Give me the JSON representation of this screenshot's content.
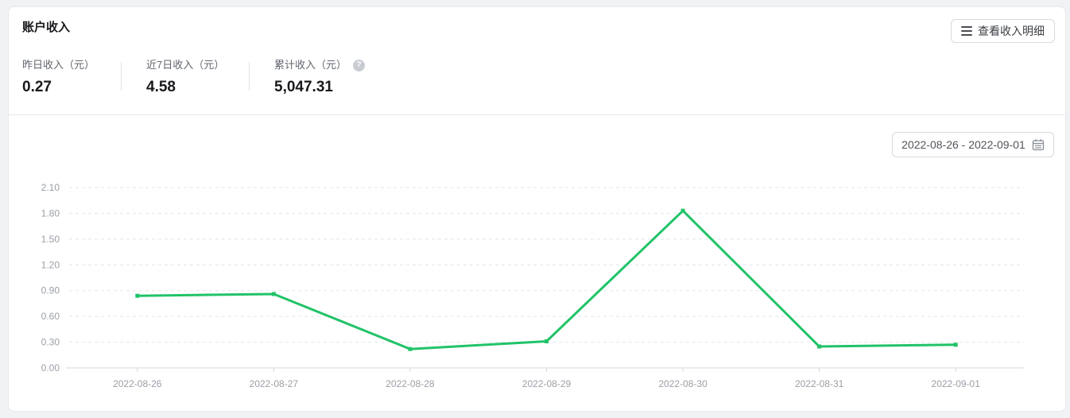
{
  "header": {
    "title": "账户收入",
    "detail_button": "查看收入明细"
  },
  "stats": [
    {
      "label": "昨日收入（元）",
      "value": "0.27"
    },
    {
      "label": "近7日收入（元）",
      "value": "4.58"
    },
    {
      "label": "累计收入（元）",
      "value": "5,047.31",
      "help_icon": "question-mark"
    }
  ],
  "date_range": {
    "value": "2022-08-26 - 2022-09-01",
    "icon": "calendar-icon"
  },
  "chart_data": {
    "type": "line",
    "categories": [
      "2022-08-26",
      "2022-08-27",
      "2022-08-28",
      "2022-08-29",
      "2022-08-30",
      "2022-08-31",
      "2022-09-01"
    ],
    "values": [
      0.84,
      0.86,
      0.22,
      0.31,
      1.83,
      0.25,
      0.27
    ],
    "title": "",
    "xlabel": "",
    "ylabel": "",
    "ylim": [
      0,
      2.1
    ],
    "ytick_step": 0.3,
    "ytick_labels": [
      "0.00",
      "0.30",
      "0.60",
      "0.90",
      "1.20",
      "1.50",
      "1.80",
      "2.10"
    ],
    "grid": "horizontal-dashed",
    "legend": "none",
    "line_color": "#21c368"
  },
  "colors": {
    "page_bg": "#f1f2f4",
    "card_bg": "#ffffff",
    "line_green": "#21c368",
    "grid_line": "#e3e5e8",
    "axis_line": "#d4d7dc",
    "axis_text": "#9a9fa6"
  }
}
